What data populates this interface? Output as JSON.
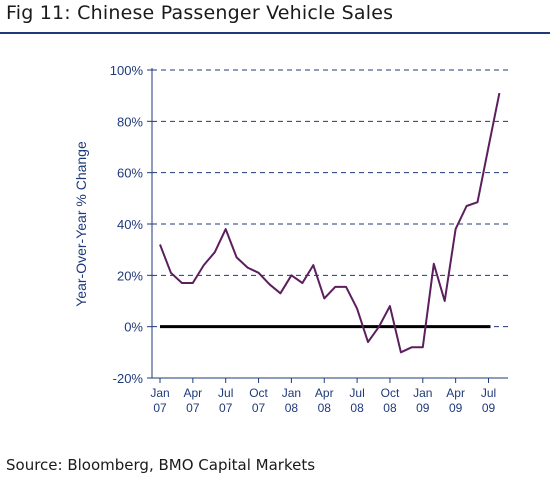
{
  "header": {
    "title": "Fig 11: Chinese Passenger Vehicle Sales"
  },
  "footer": {
    "source": "Source: Bloomberg, BMO Capital Markets"
  },
  "colors": {
    "line": "#5c1f5e",
    "axis": "#1f3a7a",
    "zero_line": "#000000",
    "grid": "#1f3a7a"
  },
  "chart_data": {
    "type": "line",
    "title": "",
    "ylabel": "Year-Over-Year % Change",
    "xlabel": "",
    "ylim": [
      -20,
      100
    ],
    "yticks": [
      -20,
      0,
      20,
      40,
      60,
      80,
      100
    ],
    "ytick_labels": [
      "-20%",
      "0%",
      "20%",
      "40%",
      "60%",
      "80%",
      "100%"
    ],
    "grid": "horizontal dashed",
    "x_tick_labels": [
      {
        "month": "Jan",
        "year": "07"
      },
      {
        "month": "Apr",
        "year": "07"
      },
      {
        "month": "Jul",
        "year": "07"
      },
      {
        "month": "Oct",
        "year": "07"
      },
      {
        "month": "Jan",
        "year": "08"
      },
      {
        "month": "Apr",
        "year": "08"
      },
      {
        "month": "Jul",
        "year": "08"
      },
      {
        "month": "Oct",
        "year": "08"
      },
      {
        "month": "Jan",
        "year": "09"
      },
      {
        "month": "Apr",
        "year": "09"
      },
      {
        "month": "Jul",
        "year": "09"
      }
    ],
    "x": [
      "Jan 07",
      "Feb 07",
      "Mar 07",
      "Apr 07",
      "May 07",
      "Jun 07",
      "Jul 07",
      "Aug 07",
      "Sep 07",
      "Oct 07",
      "Nov 07",
      "Dec 07",
      "Jan 08",
      "Feb 08",
      "Mar 08",
      "Apr 08",
      "May 08",
      "Jun 08",
      "Jul 08",
      "Aug 08",
      "Sep 08",
      "Oct 08",
      "Nov 08",
      "Dec 08",
      "Jan 09",
      "Feb 09",
      "Mar 09",
      "Apr 09",
      "May 09",
      "Jun 09",
      "Jul 09",
      "Aug 09"
    ],
    "series": [
      {
        "values": [
          32,
          21,
          17,
          17,
          24,
          29,
          38,
          27,
          23,
          21,
          16.5,
          13,
          20,
          17,
          24,
          11,
          15.5,
          15.5,
          7,
          -6,
          0,
          8,
          -10,
          -8,
          -8,
          24.5,
          10,
          38,
          47,
          48.5,
          70,
          91
        ]
      }
    ],
    "reference_line": {
      "y": 0,
      "label": "0%"
    }
  }
}
